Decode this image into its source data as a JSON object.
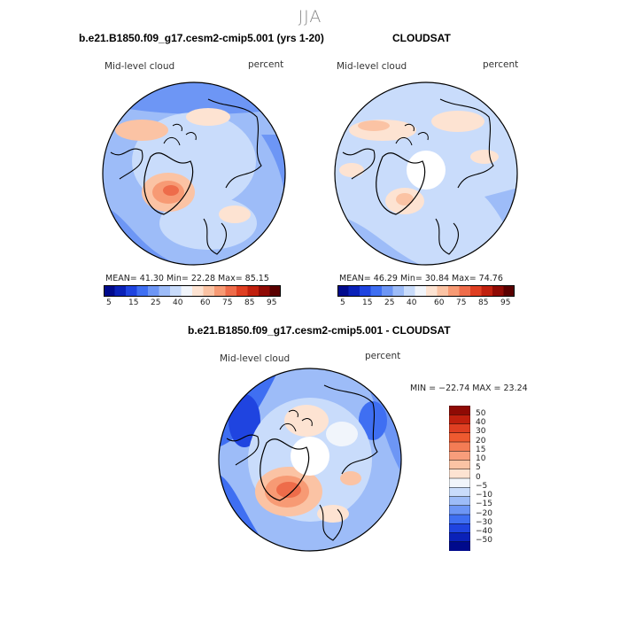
{
  "figure": {
    "season": "JJA",
    "top_left": {
      "title": "b.e21.B1850.f09_g17.cesm2-cmip5.001 (yrs 1-20)",
      "variable": "Mid-level cloud",
      "units": "percent",
      "stats": "MEAN=   41.30   Min=   22.28   Max=   85.15",
      "mean": 41.3,
      "min": 22.28,
      "max": 85.15
    },
    "top_right": {
      "title": "CLOUDSAT",
      "variable": "Mid-level cloud",
      "units": "percent",
      "stats": "MEAN=   46.29   Min=   30.84   Max=   74.76",
      "mean": 46.29,
      "min": 30.84,
      "max": 74.76
    },
    "bottom": {
      "title": "b.e21.B1850.f09_g17.cesm2-cmip5.001 - CLOUDSAT",
      "variable": "Mid-level cloud",
      "units": "percent",
      "minmax": "MIN = −22.74  MAX =  23.24",
      "min": -22.74,
      "max": 23.24
    },
    "abs_colorbar": {
      "labels": [
        "5",
        "15",
        "25",
        "40",
        "60",
        "75",
        "85",
        "95"
      ],
      "colors": [
        "#000a8c",
        "#0a21b8",
        "#1f44e0",
        "#3f6ff2",
        "#6d96f5",
        "#9dbcf8",
        "#c9dcfb",
        "#f1f5fb",
        "#fde3d2",
        "#fbc3a4",
        "#f79a74",
        "#ee6c4a",
        "#df3f22",
        "#c0200e",
        "#8f0a04",
        "#5a0000"
      ]
    },
    "diff_colorbar": {
      "labels": [
        "50",
        "40",
        "30",
        "20",
        "15",
        "10",
        "5",
        "0",
        "−5",
        "−10",
        "−15",
        "−20",
        "−30",
        "−40",
        "−50"
      ],
      "colors": [
        "#8f0a04",
        "#c0200e",
        "#df3f22",
        "#ee5a30",
        "#f47c55",
        "#f89d7b",
        "#fbc3a4",
        "#fde3d2",
        "#f1f5fb",
        "#c9dcfb",
        "#9dbcf8",
        "#6d96f5",
        "#3f6ff2",
        "#1f44e0",
        "#0a21b8",
        "#000a8c"
      ]
    }
  }
}
